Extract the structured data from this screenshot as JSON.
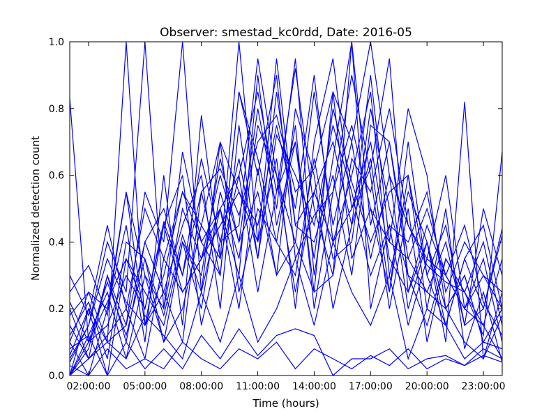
{
  "chart_data": {
    "type": "line",
    "title": "Observer: smestad_kc0rdd, Date: 2016-05",
    "xlabel": "Time (hours)",
    "ylabel": "Normalized detection count",
    "xlim": [
      1,
      24
    ],
    "ylim": [
      0,
      1
    ],
    "x_ticks": [
      {
        "value": 2,
        "label": "02:00:00"
      },
      {
        "value": 5,
        "label": "05:00:00"
      },
      {
        "value": 8,
        "label": "08:00:00"
      },
      {
        "value": 11,
        "label": "11:00:00"
      },
      {
        "value": 14,
        "label": "14:00:00"
      },
      {
        "value": 17,
        "label": "17:00:00"
      },
      {
        "value": 20,
        "label": "20:00:00"
      },
      {
        "value": 23,
        "label": "23:00:00"
      }
    ],
    "y_ticks": [
      {
        "value": 0.0,
        "label": "0.0"
      },
      {
        "value": 0.2,
        "label": "0.2"
      },
      {
        "value": 0.4,
        "label": "0.4"
      },
      {
        "value": 0.6,
        "label": "0.6"
      },
      {
        "value": 0.8,
        "label": "0.8"
      },
      {
        "value": 1.0,
        "label": "1.0"
      }
    ],
    "line_color": "#0000ff",
    "grid": false,
    "x": [
      1,
      2,
      3,
      4,
      5,
      6,
      7,
      8,
      9,
      10,
      11,
      12,
      13,
      14,
      15,
      16,
      17,
      18,
      19,
      20,
      21,
      22,
      23,
      24
    ],
    "series": [
      {
        "values": [
          0.83,
          0.1,
          0.22,
          0.35,
          0.2,
          0.46,
          0.3,
          0.55,
          0.62,
          0.48,
          0.7,
          0.78,
          0.55,
          0.62,
          0.85,
          0.7,
          1.0,
          0.6,
          0.45,
          0.33,
          0.28,
          0.25,
          0.15,
          0.05
        ]
      },
      {
        "values": [
          0.0,
          0.2,
          0.1,
          1.0,
          0.15,
          0.3,
          0.55,
          0.4,
          0.3,
          0.85,
          0.6,
          0.9,
          0.35,
          0.48,
          0.55,
          0.75,
          0.5,
          0.4,
          0.8,
          0.6,
          0.2,
          0.3,
          0.1,
          0.08
        ]
      },
      {
        "values": [
          0.05,
          0.15,
          0.4,
          0.25,
          1.0,
          0.2,
          0.5,
          0.35,
          0.6,
          0.4,
          0.8,
          0.5,
          0.95,
          0.3,
          0.65,
          1.0,
          0.45,
          0.7,
          0.35,
          0.25,
          0.4,
          0.15,
          0.2,
          0.44
        ]
      },
      {
        "values": [
          0.2,
          0.05,
          0.3,
          0.15,
          0.55,
          0.4,
          1.0,
          0.25,
          0.7,
          0.55,
          0.45,
          0.75,
          0.5,
          0.9,
          0.4,
          0.6,
          0.85,
          0.3,
          0.55,
          0.4,
          0.1,
          0.82,
          0.05,
          0.18
        ]
      },
      {
        "values": [
          0.1,
          0.0,
          0.2,
          0.45,
          0.1,
          0.6,
          0.15,
          0.78,
          0.35,
          1.0,
          0.4,
          0.65,
          0.2,
          0.7,
          0.95,
          0.5,
          0.62,
          0.95,
          0.25,
          0.45,
          0.3,
          0.2,
          0.35,
          0.1
        ]
      },
      {
        "values": [
          0.25,
          0.33,
          0.18,
          0.55,
          0.3,
          0.2,
          0.67,
          0.4,
          0.5,
          0.3,
          0.9,
          0.45,
          0.7,
          0.35,
          0.8,
          0.58,
          0.4,
          0.55,
          0.6,
          0.2,
          0.5,
          0.08,
          0.25,
          0.04
        ]
      },
      {
        "values": [
          0.0,
          0.08,
          0.3,
          0.1,
          0.4,
          0.25,
          0.45,
          0.6,
          0.2,
          0.75,
          0.35,
          0.85,
          0.45,
          0.4,
          0.6,
          0.3,
          0.75,
          0.7,
          0.3,
          0.15,
          0.35,
          0.25,
          0.12,
          0.67
        ]
      },
      {
        "values": [
          0.15,
          0.05,
          0.12,
          0.2,
          0.05,
          0.35,
          0.25,
          0.35,
          0.5,
          0.6,
          0.25,
          0.55,
          0.7,
          0.25,
          0.3,
          1.0,
          0.2,
          0.45,
          0.4,
          0.55,
          0.25,
          0.4,
          0.3,
          0.2
        ]
      },
      {
        "values": [
          0.06,
          0.2,
          0.0,
          0.35,
          0.25,
          0.15,
          0.4,
          0.3,
          0.65,
          0.4,
          0.55,
          0.3,
          0.8,
          0.6,
          0.2,
          0.45,
          0.65,
          0.25,
          0.6,
          0.3,
          0.45,
          0.15,
          0.5,
          0.3
        ]
      },
      {
        "values": [
          0.18,
          0.25,
          0.1,
          0.15,
          0.4,
          0.5,
          0.3,
          0.65,
          0.4,
          0.45,
          0.95,
          0.6,
          0.4,
          0.85,
          0.45,
          0.7,
          0.35,
          0.6,
          0.2,
          0.4,
          0.15,
          0.35,
          0.2,
          0.42
        ]
      },
      {
        "values": [
          0.0,
          0.12,
          0.25,
          0.05,
          0.3,
          0.1,
          0.2,
          0.45,
          0.7,
          0.25,
          0.5,
          0.4,
          0.3,
          0.65,
          0.35,
          0.4,
          0.8,
          0.5,
          0.3,
          0.25,
          0.2,
          0.1,
          0.05,
          0.25
        ]
      },
      {
        "values": [
          0.22,
          0.1,
          0.15,
          0.3,
          0.2,
          0.45,
          0.6,
          0.15,
          0.4,
          0.65,
          0.35,
          0.72,
          0.6,
          0.45,
          0.75,
          0.55,
          0.3,
          0.45,
          0.15,
          0.35,
          0.3,
          0.2,
          0.15,
          0.35
        ]
      },
      {
        "values": [
          0.04,
          0.15,
          0.35,
          0.22,
          0.15,
          0.25,
          0.1,
          0.55,
          0.3,
          0.85,
          0.65,
          0.4,
          0.75,
          0.2,
          0.55,
          0.9,
          0.6,
          0.2,
          0.5,
          0.1,
          0.35,
          0.25,
          0.4,
          0.15
        ]
      },
      {
        "values": [
          0.12,
          0.22,
          0.05,
          0.4,
          0.35,
          0.1,
          0.4,
          0.2,
          0.55,
          0.35,
          0.75,
          0.6,
          0.25,
          0.55,
          0.4,
          0.5,
          0.7,
          0.35,
          0.25,
          0.4,
          0.2,
          0.3,
          0.1,
          0.2
        ]
      },
      {
        "values": [
          0.0,
          0.05,
          0.1,
          0.05,
          0.18,
          0.12,
          0.05,
          0.25,
          0.1,
          0.3,
          0.1,
          0.2,
          0.35,
          0.15,
          0.4,
          0.25,
          0.15,
          0.3,
          0.05,
          0.2,
          0.15,
          0.05,
          0.1,
          0.08
        ]
      },
      {
        "values": [
          0.03,
          0.0,
          0.08,
          0.02,
          0.05,
          0.02,
          0.1,
          0.05,
          0.02,
          0.08,
          0.05,
          0.1,
          0.02,
          0.08,
          0.05,
          0.02,
          0.06,
          0.03,
          0.08,
          0.02,
          0.05,
          0.03,
          0.06,
          0.04
        ]
      },
      {
        "values": [
          0.08,
          0.12,
          0.0,
          0.1,
          0.02,
          0.08,
          0.02,
          0.12,
          0.05,
          0.14,
          0.06,
          0.12,
          0.14,
          0.12,
          0.0,
          0.05,
          0.05,
          0.08,
          0.02,
          0.05,
          0.06,
          0.03,
          0.08,
          0.05
        ]
      },
      {
        "values": [
          0.3,
          0.18,
          0.45,
          0.2,
          0.5,
          0.35,
          0.55,
          0.45,
          0.35,
          0.6,
          0.85,
          0.55,
          0.92,
          0.5,
          0.3,
          0.65,
          0.55,
          0.8,
          0.45,
          0.35,
          0.6,
          0.2,
          0.3,
          0.25
        ]
      },
      {
        "values": [
          0.1,
          0.25,
          0.2,
          0.55,
          0.15,
          0.45,
          0.25,
          0.35,
          0.45,
          0.55,
          0.4,
          0.95,
          0.45,
          0.55,
          0.7,
          0.45,
          0.9,
          0.4,
          0.35,
          0.5,
          0.3,
          0.45,
          0.22,
          0.12
        ]
      },
      {
        "values": [
          0.0,
          0.1,
          0.28,
          0.12,
          0.35,
          0.18,
          0.42,
          0.25,
          0.5,
          0.2,
          0.62,
          0.3,
          0.4,
          0.25,
          0.85,
          0.35,
          0.5,
          0.25,
          0.7,
          0.3,
          0.15,
          0.35,
          0.45,
          0.2
        ]
      }
    ]
  }
}
